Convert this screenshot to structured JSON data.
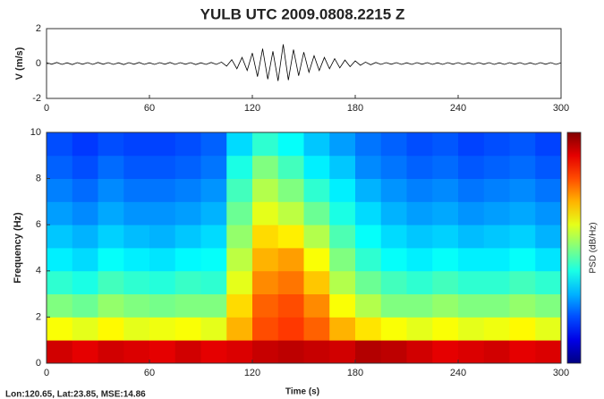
{
  "chart_data": [
    {
      "type": "line",
      "title": "YULB  UTC  2009.0808.2215  Z",
      "ylabel": "V (m/s)",
      "color": "#000000",
      "x": [
        0,
        3,
        6,
        9,
        12,
        15,
        18,
        21,
        24,
        27,
        30,
        33,
        36,
        39,
        42,
        45,
        48,
        51,
        54,
        57,
        60,
        63,
        66,
        69,
        72,
        75,
        78,
        81,
        84,
        87,
        90,
        93,
        96,
        99,
        102,
        105,
        108,
        111,
        114,
        117,
        120,
        123,
        126,
        129,
        132,
        135,
        138,
        141,
        144,
        147,
        150,
        153,
        156,
        159,
        162,
        165,
        168,
        171,
        174,
        177,
        180,
        183,
        186,
        189,
        192,
        195,
        198,
        201,
        204,
        207,
        210,
        213,
        216,
        219,
        222,
        225,
        228,
        231,
        234,
        237,
        240,
        243,
        246,
        249,
        252,
        255,
        258,
        261,
        264,
        267,
        270,
        273,
        276,
        279,
        282,
        285,
        288,
        291,
        294,
        297,
        300
      ],
      "values": [
        0.05,
        -0.04,
        0.06,
        -0.05,
        0.04,
        -0.06,
        0.05,
        -0.04,
        0.05,
        -0.05,
        0.06,
        -0.04,
        0.05,
        -0.05,
        0.04,
        -0.06,
        0.05,
        -0.04,
        0.06,
        -0.05,
        0.04,
        -0.05,
        0.05,
        -0.04,
        0.06,
        -0.05,
        0.05,
        -0.04,
        0.05,
        -0.06,
        0.04,
        -0.05,
        0.06,
        -0.05,
        0.08,
        -0.15,
        0.22,
        -0.3,
        0.35,
        -0.4,
        0.6,
        -0.75,
        0.85,
        -0.9,
        0.7,
        -1.0,
        1.1,
        -0.95,
        0.8,
        -0.7,
        0.65,
        -0.5,
        0.45,
        -0.4,
        0.35,
        -0.3,
        0.28,
        -0.25,
        0.2,
        -0.18,
        0.15,
        -0.1,
        0.08,
        -0.07,
        0.06,
        -0.05,
        0.05,
        -0.04,
        0.05,
        -0.05,
        0.04,
        -0.05,
        0.05,
        -0.04,
        0.05,
        -0.05,
        0.04,
        -0.05,
        0.05,
        -0.04,
        0.05,
        -0.05,
        0.04,
        -0.05,
        0.05,
        -0.04,
        0.05,
        -0.05,
        0.04,
        -0.05,
        0.05,
        -0.04,
        0.05,
        -0.05,
        0.04,
        -0.05,
        0.05,
        -0.04,
        0.05,
        -0.05,
        0.04
      ],
      "xlim": [
        0,
        300
      ],
      "xticks": [
        0,
        60,
        120,
        180,
        240,
        300
      ],
      "ylim": [
        -2,
        2
      ],
      "yticks": [
        -2,
        0,
        2
      ]
    },
    {
      "type": "heatmap",
      "xlabel": "Time (s)",
      "ylabel": "Frequency (Hz)",
      "colorbar_label": "PSD (dB/Hz)",
      "annotation": "Lon:120.65, Lat:23.85, MSE:14.86",
      "colormap": "jet",
      "zlim": [
        0,
        1
      ],
      "xbins": [
        0,
        15,
        30,
        45,
        60,
        75,
        90,
        105,
        120,
        135,
        150,
        165,
        180,
        195,
        210,
        225,
        240,
        255,
        270,
        285,
        300
      ],
      "ybins": [
        0,
        1,
        2,
        3,
        4,
        5,
        6,
        7,
        8,
        9,
        10
      ],
      "values": [
        [
          0.92,
          0.9,
          0.92,
          0.91,
          0.9,
          0.92,
          0.9,
          0.91,
          0.93,
          0.94,
          0.93,
          0.92,
          0.95,
          0.94,
          0.92,
          0.9,
          0.91,
          0.92,
          0.9,
          0.91
        ],
        [
          0.62,
          0.6,
          0.63,
          0.6,
          0.61,
          0.62,
          0.6,
          0.7,
          0.8,
          0.82,
          0.78,
          0.7,
          0.65,
          0.62,
          0.6,
          0.62,
          0.6,
          0.61,
          0.63,
          0.6
        ],
        [
          0.5,
          0.48,
          0.52,
          0.5,
          0.49,
          0.5,
          0.5,
          0.66,
          0.78,
          0.8,
          0.74,
          0.62,
          0.55,
          0.5,
          0.5,
          0.52,
          0.5,
          0.5,
          0.52,
          0.5
        ],
        [
          0.42,
          0.4,
          0.44,
          0.42,
          0.41,
          0.43,
          0.42,
          0.6,
          0.74,
          0.76,
          0.68,
          0.55,
          0.48,
          0.44,
          0.42,
          0.44,
          0.42,
          0.42,
          0.44,
          0.42
        ],
        [
          0.36,
          0.34,
          0.38,
          0.36,
          0.35,
          0.37,
          0.38,
          0.56,
          0.7,
          0.72,
          0.62,
          0.5,
          0.42,
          0.38,
          0.36,
          0.38,
          0.36,
          0.36,
          0.38,
          0.35
        ],
        [
          0.32,
          0.3,
          0.33,
          0.31,
          0.3,
          0.32,
          0.34,
          0.52,
          0.66,
          0.64,
          0.55,
          0.45,
          0.38,
          0.34,
          0.32,
          0.33,
          0.31,
          0.32,
          0.33,
          0.3
        ],
        [
          0.28,
          0.26,
          0.29,
          0.27,
          0.27,
          0.28,
          0.3,
          0.48,
          0.6,
          0.56,
          0.48,
          0.4,
          0.34,
          0.3,
          0.28,
          0.29,
          0.27,
          0.28,
          0.29,
          0.27
        ],
        [
          0.25,
          0.23,
          0.26,
          0.24,
          0.24,
          0.25,
          0.27,
          0.44,
          0.55,
          0.5,
          0.42,
          0.36,
          0.3,
          0.27,
          0.25,
          0.26,
          0.24,
          0.25,
          0.26,
          0.24
        ],
        [
          0.22,
          0.2,
          0.23,
          0.21,
          0.21,
          0.22,
          0.24,
          0.4,
          0.5,
          0.44,
          0.36,
          0.32,
          0.26,
          0.24,
          0.22,
          0.23,
          0.21,
          0.22,
          0.23,
          0.21
        ],
        [
          0.2,
          0.18,
          0.2,
          0.19,
          0.19,
          0.2,
          0.22,
          0.34,
          0.42,
          0.38,
          0.32,
          0.28,
          0.24,
          0.22,
          0.2,
          0.21,
          0.19,
          0.2,
          0.21,
          0.19
        ]
      ],
      "xlim": [
        0,
        300
      ],
      "xticks": [
        0,
        60,
        120,
        180,
        240,
        300
      ],
      "ylim": [
        0,
        10
      ],
      "yticks": [
        0,
        2,
        4,
        6,
        8,
        10
      ]
    }
  ]
}
